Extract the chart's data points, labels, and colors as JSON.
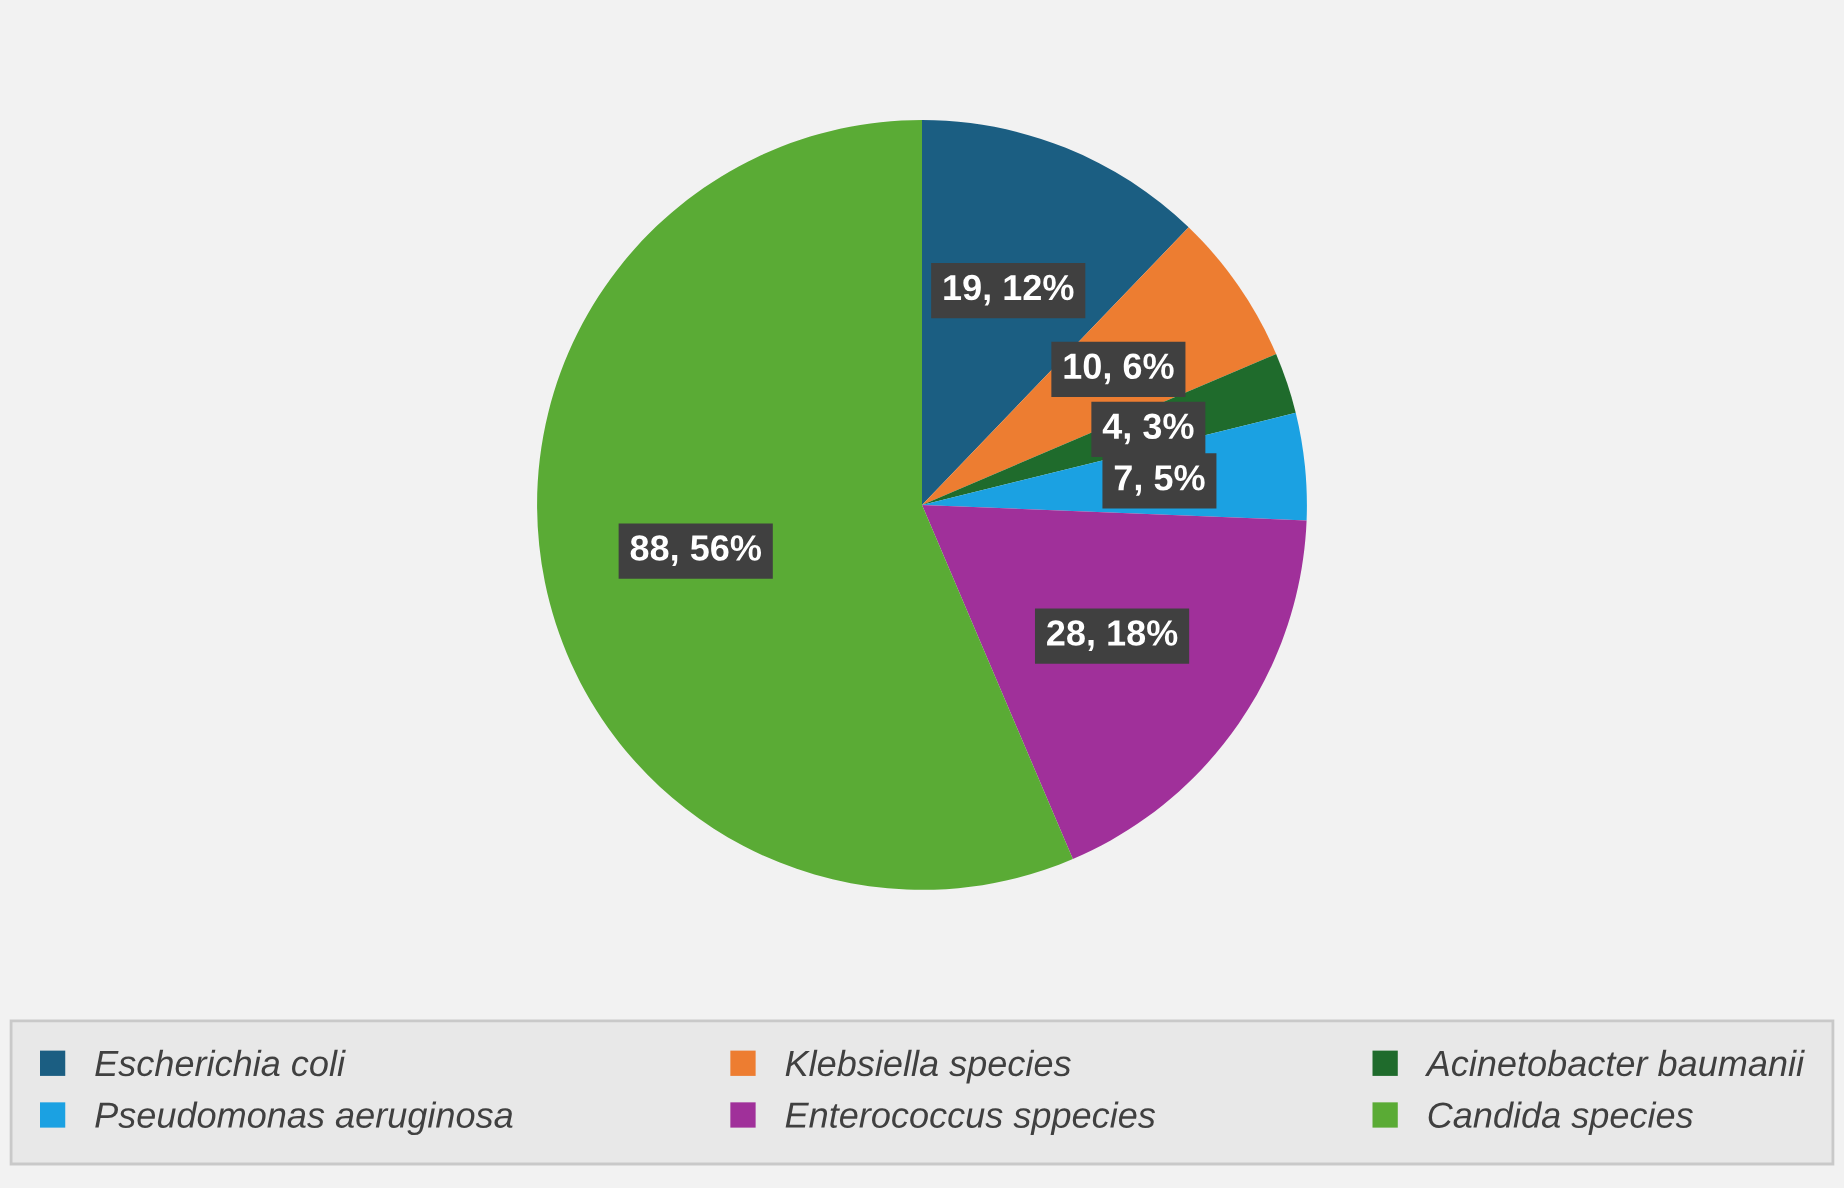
{
  "chart_data": {
    "type": "pie",
    "categories": [
      "Escherichia coli",
      "Klebsiella species",
      "Acinetobacter baumanii",
      "Pseudomonas aeruginosa",
      "Enterococcus sppecies",
      "Candida species"
    ],
    "values": [
      19,
      10,
      4,
      7,
      28,
      88
    ],
    "value_labels": [
      "19, 12%",
      "10, 6%",
      "4, 3%",
      "7, 5%",
      "28, 18%",
      "88, 56%"
    ],
    "colors": [
      "#1b5e82",
      "#ed7d31",
      "#1f6b2c",
      "#1ba1e2",
      "#a0309a",
      "#5aab35"
    ],
    "legend": "bottom"
  }
}
